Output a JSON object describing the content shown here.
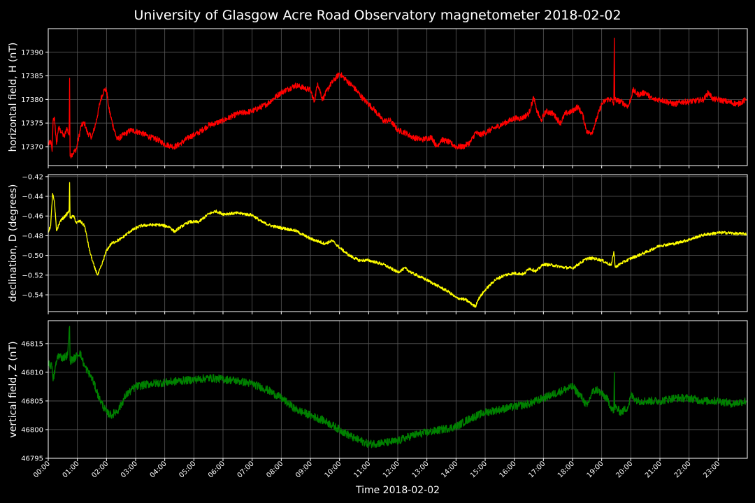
{
  "chart_data": {
    "type": "line",
    "title": "University of Glasgow Acre Road Observatory magnetometer 2018-02-02",
    "xlabel": "Time 2018-02-02",
    "x_ticks": [
      "00:00",
      "01:00",
      "02:00",
      "03:00",
      "04:00",
      "05:00",
      "06:00",
      "07:00",
      "08:00",
      "09:00",
      "10:00",
      "11:00",
      "12:00",
      "13:00",
      "14:00",
      "15:00",
      "16:00",
      "17:00",
      "18:00",
      "19:00",
      "20:00",
      "21:00",
      "22:00",
      "23:00"
    ],
    "xlim": [
      "00:00",
      "24:00"
    ],
    "grid": true,
    "panels": [
      {
        "id": "h",
        "ylabel": "horizontal field, H (nT)",
        "color": "#ff0000",
        "ylim": [
          17366,
          17395
        ],
        "y_ticks": [
          "17370",
          "17375",
          "17380",
          "17385",
          "17390"
        ],
        "y_tick_values": [
          17370,
          17375,
          17380,
          17385,
          17390
        ],
        "noise": 0.6,
        "series": [
          [
            "00:00",
            17370.5
          ],
          [
            "00:06",
            17371
          ],
          [
            "00:08",
            17369
          ],
          [
            "00:10",
            17375.5
          ],
          [
            "00:13",
            17376
          ],
          [
            "00:17",
            17370.5
          ],
          [
            "00:21",
            17374
          ],
          [
            "00:28",
            17373
          ],
          [
            "00:33",
            17372
          ],
          [
            "00:38",
            17374
          ],
          [
            "00:43",
            17372.5
          ],
          [
            "00:44",
            17384.5
          ],
          [
            "00:45",
            17368
          ],
          [
            "00:50",
            17368.5
          ],
          [
            "00:58",
            17369.5
          ],
          [
            "01:08",
            17374.5
          ],
          [
            "01:15",
            17375
          ],
          [
            "01:20",
            17373
          ],
          [
            "01:30",
            17372
          ],
          [
            "01:38",
            17375
          ],
          [
            "01:48",
            17380
          ],
          [
            "01:55",
            17382
          ],
          [
            "02:00",
            17382
          ],
          [
            "02:05",
            17378
          ],
          [
            "02:12",
            17375
          ],
          [
            "02:22",
            17371.5
          ],
          [
            "02:35",
            17372.5
          ],
          [
            "02:50",
            17373.5
          ],
          [
            "03:10",
            17373
          ],
          [
            "03:30",
            17372
          ],
          [
            "03:45",
            17371.5
          ],
          [
            "04:00",
            17370.5
          ],
          [
            "04:20",
            17370
          ],
          [
            "04:30",
            17370.5
          ],
          [
            "04:50",
            17372
          ],
          [
            "05:10",
            17373
          ],
          [
            "05:30",
            17374.5
          ],
          [
            "06:00",
            17375.5
          ],
          [
            "06:30",
            17377
          ],
          [
            "07:00",
            17377.5
          ],
          [
            "07:30",
            17379
          ],
          [
            "08:00",
            17381.5
          ],
          [
            "08:30",
            17383
          ],
          [
            "09:00",
            17382
          ],
          [
            "09:08",
            17379.5
          ],
          [
            "09:15",
            17383.5
          ],
          [
            "09:25",
            17380
          ],
          [
            "09:40",
            17383
          ],
          [
            "10:00",
            17385.5
          ],
          [
            "10:15",
            17384
          ],
          [
            "10:30",
            17382.5
          ],
          [
            "10:50",
            17380
          ],
          [
            "11:10",
            17378
          ],
          [
            "11:30",
            17375.5
          ],
          [
            "11:45",
            17375.5
          ],
          [
            "12:00",
            17373.5
          ],
          [
            "12:15",
            17373
          ],
          [
            "12:30",
            17372
          ],
          [
            "12:50",
            17371.5
          ],
          [
            "13:10",
            17372
          ],
          [
            "13:20",
            17370
          ],
          [
            "13:30",
            17371.5
          ],
          [
            "13:45",
            17371
          ],
          [
            "14:00",
            17370
          ],
          [
            "14:15",
            17370
          ],
          [
            "14:30",
            17371
          ],
          [
            "14:40",
            17373
          ],
          [
            "14:50",
            17372.5
          ],
          [
            "15:00",
            17373
          ],
          [
            "15:20",
            17374
          ],
          [
            "15:40",
            17375
          ],
          [
            "16:00",
            17376
          ],
          [
            "16:15",
            17376
          ],
          [
            "16:30",
            17377
          ],
          [
            "16:40",
            17380.5
          ],
          [
            "16:45",
            17378
          ],
          [
            "16:55",
            17375.5
          ],
          [
            "17:05",
            17377.5
          ],
          [
            "17:20",
            17377
          ],
          [
            "17:35",
            17375
          ],
          [
            "17:45",
            17377
          ],
          [
            "18:00",
            17377.5
          ],
          [
            "18:10",
            17378.5
          ],
          [
            "18:20",
            17377
          ],
          [
            "18:30",
            17373
          ],
          [
            "18:40",
            17373
          ],
          [
            "18:50",
            17376
          ],
          [
            "19:00",
            17379
          ],
          [
            "19:10",
            17380
          ],
          [
            "19:20",
            17380
          ],
          [
            "19:25",
            17379
          ],
          [
            "19:26",
            17393
          ],
          [
            "19:27",
            17380
          ],
          [
            "19:40",
            17379.5
          ],
          [
            "19:55",
            17378.5
          ],
          [
            "20:05",
            17382
          ],
          [
            "20:15",
            17381
          ],
          [
            "20:30",
            17381.5
          ],
          [
            "20:45",
            17380
          ],
          [
            "21:00",
            17380
          ],
          [
            "21:15",
            17379.5
          ],
          [
            "21:30",
            17379
          ],
          [
            "21:45",
            17379.5
          ],
          [
            "22:00",
            17379.5
          ],
          [
            "22:30",
            17380
          ],
          [
            "22:40",
            17381.5
          ],
          [
            "22:50",
            17380
          ],
          [
            "23:00",
            17380
          ],
          [
            "23:20",
            17379.5
          ],
          [
            "23:40",
            17379
          ],
          [
            "23:58",
            17380
          ]
        ]
      },
      {
        "id": "d",
        "ylabel": "declination, D (degrees)",
        "color": "#ffff00",
        "ylim": [
          -0.557,
          -0.418
        ],
        "y_ticks": [
          "−0.54",
          "−0.52",
          "−0.50",
          "−0.48",
          "−0.46",
          "−0.44",
          "−0.42"
        ],
        "y_tick_values": [
          -0.54,
          -0.52,
          -0.5,
          -0.48,
          -0.46,
          -0.44,
          -0.42
        ],
        "noise": 0.0015,
        "series": [
          [
            "00:00",
            -0.476
          ],
          [
            "00:05",
            -0.47
          ],
          [
            "00:09",
            -0.437
          ],
          [
            "00:13",
            -0.447
          ],
          [
            "00:17",
            -0.475
          ],
          [
            "00:25",
            -0.465
          ],
          [
            "00:35",
            -0.46
          ],
          [
            "00:43",
            -0.455
          ],
          [
            "00:44",
            -0.426
          ],
          [
            "00:45",
            -0.462
          ],
          [
            "00:52",
            -0.46
          ],
          [
            "00:58",
            -0.467
          ],
          [
            "01:05",
            -0.465
          ],
          [
            "01:15",
            -0.47
          ],
          [
            "01:25",
            -0.495
          ],
          [
            "01:35",
            -0.512
          ],
          [
            "01:42",
            -0.52
          ],
          [
            "01:50",
            -0.51
          ],
          [
            "02:00",
            -0.495
          ],
          [
            "02:10",
            -0.488
          ],
          [
            "02:30",
            -0.483
          ],
          [
            "02:50",
            -0.475
          ],
          [
            "03:10",
            -0.47
          ],
          [
            "03:30",
            -0.469
          ],
          [
            "03:50",
            -0.469
          ],
          [
            "04:10",
            -0.471
          ],
          [
            "04:20",
            -0.476
          ],
          [
            "04:30",
            -0.472
          ],
          [
            "04:50",
            -0.466
          ],
          [
            "05:10",
            -0.466
          ],
          [
            "05:30",
            -0.458
          ],
          [
            "05:45",
            -0.455
          ],
          [
            "06:00",
            -0.458
          ],
          [
            "06:30",
            -0.457
          ],
          [
            "07:00",
            -0.459
          ],
          [
            "07:20",
            -0.466
          ],
          [
            "07:40",
            -0.47
          ],
          [
            "08:00",
            -0.472
          ],
          [
            "08:30",
            -0.475
          ],
          [
            "09:00",
            -0.483
          ],
          [
            "09:30",
            -0.488
          ],
          [
            "09:45",
            -0.485
          ],
          [
            "10:00",
            -0.492
          ],
          [
            "10:20",
            -0.5
          ],
          [
            "10:40",
            -0.505
          ],
          [
            "11:00",
            -0.505
          ],
          [
            "11:30",
            -0.509
          ],
          [
            "12:00",
            -0.517
          ],
          [
            "12:15",
            -0.513
          ],
          [
            "12:30",
            -0.518
          ],
          [
            "13:00",
            -0.525
          ],
          [
            "13:30",
            -0.533
          ],
          [
            "13:45",
            -0.537
          ],
          [
            "14:00",
            -0.543
          ],
          [
            "14:20",
            -0.545
          ],
          [
            "14:40",
            -0.552
          ],
          [
            "14:45",
            -0.545
          ],
          [
            "15:00",
            -0.535
          ],
          [
            "15:20",
            -0.525
          ],
          [
            "15:40",
            -0.52
          ],
          [
            "16:00",
            -0.518
          ],
          [
            "16:20",
            -0.519
          ],
          [
            "16:30",
            -0.513
          ],
          [
            "16:45",
            -0.516
          ],
          [
            "17:00",
            -0.509
          ],
          [
            "17:20",
            -0.51
          ],
          [
            "17:40",
            -0.512
          ],
          [
            "18:00",
            -0.513
          ],
          [
            "18:15",
            -0.508
          ],
          [
            "18:30",
            -0.503
          ],
          [
            "18:45",
            -0.503
          ],
          [
            "19:00",
            -0.505
          ],
          [
            "19:20",
            -0.51
          ],
          [
            "19:25",
            -0.496
          ],
          [
            "19:28",
            -0.512
          ],
          [
            "19:40",
            -0.508
          ],
          [
            "20:00",
            -0.503
          ],
          [
            "20:30",
            -0.497
          ],
          [
            "21:00",
            -0.49
          ],
          [
            "21:30",
            -0.488
          ],
          [
            "22:00",
            -0.484
          ],
          [
            "22:30",
            -0.479
          ],
          [
            "23:00",
            -0.477
          ],
          [
            "23:20",
            -0.477
          ],
          [
            "23:40",
            -0.478
          ],
          [
            "23:58",
            -0.478
          ]
        ]
      },
      {
        "id": "z",
        "ylabel": "vertical field, Z (nT)",
        "color": "#008000",
        "ylim": [
          46795,
          46819
        ],
        "y_ticks": [
          "46795",
          "46800",
          "46805",
          "46810",
          "46815"
        ],
        "y_tick_values": [
          46795,
          46800,
          46805,
          46810,
          46815
        ],
        "noise": 0.7,
        "series": [
          [
            "00:00",
            46811.5
          ],
          [
            "00:08",
            46811
          ],
          [
            "00:10",
            46808.5
          ],
          [
            "00:14",
            46810.5
          ],
          [
            "00:20",
            46813
          ],
          [
            "00:30",
            46812.5
          ],
          [
            "00:40",
            46813
          ],
          [
            "00:44",
            46818
          ],
          [
            "00:45",
            46812
          ],
          [
            "00:55",
            46812.5
          ],
          [
            "01:05",
            46813.5
          ],
          [
            "01:15",
            46811
          ],
          [
            "01:30",
            46809
          ],
          [
            "01:45",
            46805.5
          ],
          [
            "02:00",
            46803
          ],
          [
            "02:10",
            46802.5
          ],
          [
            "02:25",
            46803.5
          ],
          [
            "02:40",
            46806
          ],
          [
            "03:00",
            46807.5
          ],
          [
            "03:30",
            46808
          ],
          [
            "04:00",
            46808.2
          ],
          [
            "04:30",
            46808.5
          ],
          [
            "05:00",
            46808.7
          ],
          [
            "05:30",
            46809
          ],
          [
            "06:00",
            46808.8
          ],
          [
            "06:30",
            46808.5
          ],
          [
            "07:00",
            46808
          ],
          [
            "07:30",
            46807
          ],
          [
            "08:00",
            46805.5
          ],
          [
            "08:30",
            46803.5
          ],
          [
            "09:00",
            46802.5
          ],
          [
            "09:30",
            46801.5
          ],
          [
            "10:00",
            46800
          ],
          [
            "10:30",
            46798.5
          ],
          [
            "11:00",
            46797.5
          ],
          [
            "11:30",
            46797.7
          ],
          [
            "12:00",
            46798
          ],
          [
            "12:30",
            46799
          ],
          [
            "13:00",
            46799.5
          ],
          [
            "13:30",
            46800
          ],
          [
            "14:00",
            46800.5
          ],
          [
            "14:30",
            46802
          ],
          [
            "15:00",
            46803
          ],
          [
            "15:30",
            46803.5
          ],
          [
            "16:00",
            46804
          ],
          [
            "16:30",
            46804.5
          ],
          [
            "17:00",
            46805.5
          ],
          [
            "17:30",
            46806.5
          ],
          [
            "18:00",
            46807.5
          ],
          [
            "18:20",
            46805.5
          ],
          [
            "18:30",
            46804
          ],
          [
            "18:40",
            46806.5
          ],
          [
            "18:50",
            46807
          ],
          [
            "19:10",
            46805.5
          ],
          [
            "19:25",
            46803
          ],
          [
            "19:26",
            46810
          ],
          [
            "19:27",
            46804
          ],
          [
            "19:40",
            46803
          ],
          [
            "19:55",
            46804
          ],
          [
            "20:00",
            46806
          ],
          [
            "20:15",
            46805
          ],
          [
            "20:30",
            46805
          ],
          [
            "21:00",
            46805
          ],
          [
            "21:30",
            46805.5
          ],
          [
            "22:00",
            46805.5
          ],
          [
            "22:30",
            46805
          ],
          [
            "23:00",
            46805
          ],
          [
            "23:30",
            46804.5
          ],
          [
            "23:58",
            46805
          ]
        ]
      }
    ]
  }
}
